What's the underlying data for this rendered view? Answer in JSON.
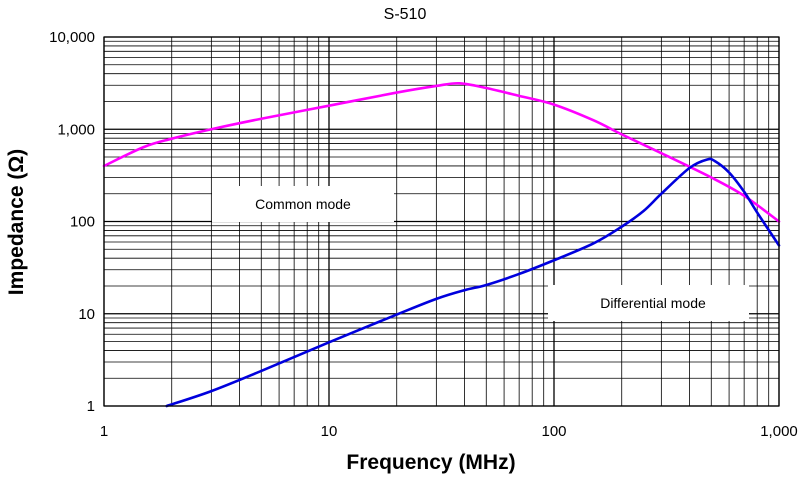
{
  "chart_data": {
    "type": "line",
    "title": "S-510",
    "xlabel": "Frequency (MHz)",
    "ylabel": "Impedance (Ω)",
    "xscale": "log",
    "yscale": "log",
    "xlim": [
      1,
      1000
    ],
    "ylim": [
      1,
      10000
    ],
    "grid": true,
    "x_tick_labels": [
      "1",
      "10",
      "100",
      "1,000"
    ],
    "y_tick_labels": [
      "1",
      "10",
      "100",
      "1,000",
      "10,000"
    ],
    "series": [
      {
        "name": "Common mode",
        "color": "#ff00ff",
        "x": [
          1,
          1.5,
          2,
          3,
          5,
          10,
          20,
          30,
          38,
          50,
          70,
          100,
          150,
          200,
          300,
          500,
          700,
          1000
        ],
        "y": [
          400,
          640,
          790,
          1000,
          1300,
          1800,
          2500,
          2950,
          3150,
          2800,
          2300,
          1850,
          1250,
          880,
          550,
          300,
          190,
          100
        ]
      },
      {
        "name": "Differential mode",
        "color": "#0000dd",
        "x": [
          1.9,
          3,
          5,
          10,
          20,
          30,
          40,
          50,
          70,
          100,
          150,
          200,
          250,
          300,
          400,
          480,
          520,
          600,
          700,
          800,
          1000
        ],
        "y": [
          1,
          1.45,
          2.4,
          4.9,
          9.8,
          14.5,
          18,
          20.5,
          27,
          38,
          58,
          88,
          130,
          200,
          380,
          470,
          450,
          340,
          210,
          125,
          55
        ]
      }
    ],
    "annotations": [
      {
        "text": "Common mode"
      },
      {
        "text": "Differential mode"
      }
    ]
  }
}
